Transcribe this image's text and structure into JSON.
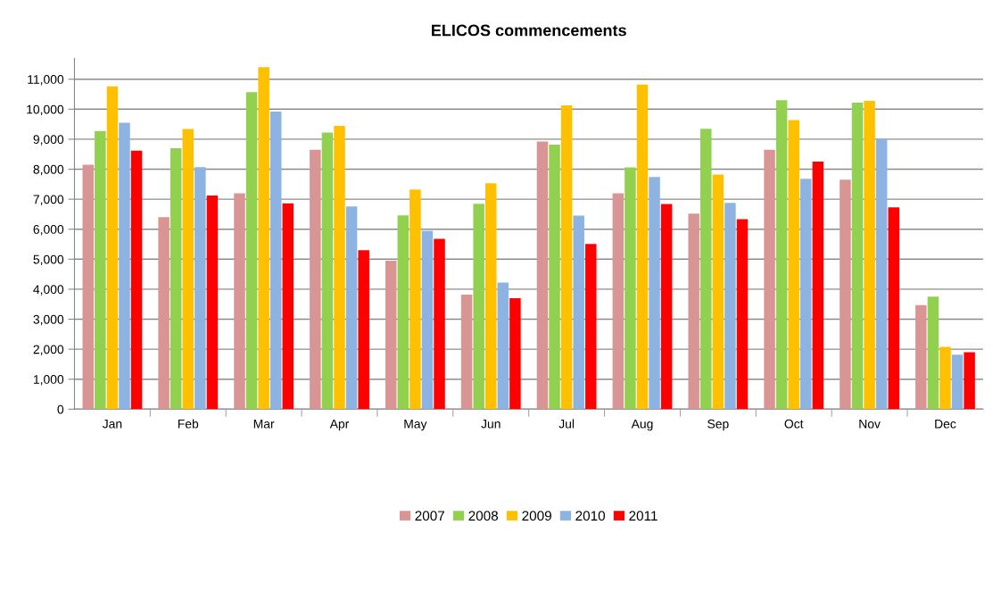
{
  "chart_data": {
    "type": "bar",
    "title": "ELICOS commencements",
    "categories": [
      "Jan",
      "Feb",
      "Mar",
      "Apr",
      "May",
      "Jun",
      "Jul",
      "Aug",
      "Sep",
      "Oct",
      "Nov",
      "Dec"
    ],
    "series": [
      {
        "name": "2007",
        "color": "#d99594",
        "values": [
          8150,
          6400,
          7200,
          8650,
          4950,
          3820,
          8920,
          7200,
          6520,
          8650,
          7650,
          3470
        ]
      },
      {
        "name": "2008",
        "color": "#92d050",
        "values": [
          9270,
          8700,
          10570,
          9220,
          6460,
          6850,
          8820,
          8060,
          9350,
          10300,
          10220,
          3750
        ]
      },
      {
        "name": "2009",
        "color": "#ffc000",
        "values": [
          10760,
          9340,
          11400,
          9440,
          7320,
          7530,
          10130,
          10820,
          7820,
          9640,
          10280,
          2080
        ]
      },
      {
        "name": "2010",
        "color": "#8db3e2",
        "values": [
          9550,
          8070,
          9920,
          6760,
          5950,
          4220,
          6450,
          7740,
          6880,
          7680,
          9010,
          1820
        ]
      },
      {
        "name": "2011",
        "color": "#ff0000",
        "values": [
          8620,
          7120,
          6860,
          5300,
          5680,
          3700,
          5510,
          6840,
          6330,
          8250,
          6730,
          1900
        ]
      }
    ],
    "ylim": [
      0,
      11700
    ],
    "yticks": [
      {
        "value": 0,
        "label": "0"
      },
      {
        "value": 1000,
        "label": "1,000"
      },
      {
        "value": 2000,
        "label": "2,000"
      },
      {
        "value": 3000,
        "label": "3,000"
      },
      {
        "value": 4000,
        "label": "4,000"
      },
      {
        "value": 5000,
        "label": "5,000"
      },
      {
        "value": 6000,
        "label": "6,000"
      },
      {
        "value": 7000,
        "label": "7,000"
      },
      {
        "value": 8000,
        "label": "8,000"
      },
      {
        "value": 9000,
        "label": "9,000"
      },
      {
        "value": 10000,
        "label": "10,000"
      },
      {
        "value": 11000,
        "label": "11,000"
      }
    ],
    "grid": "y",
    "legend": "bottom"
  }
}
